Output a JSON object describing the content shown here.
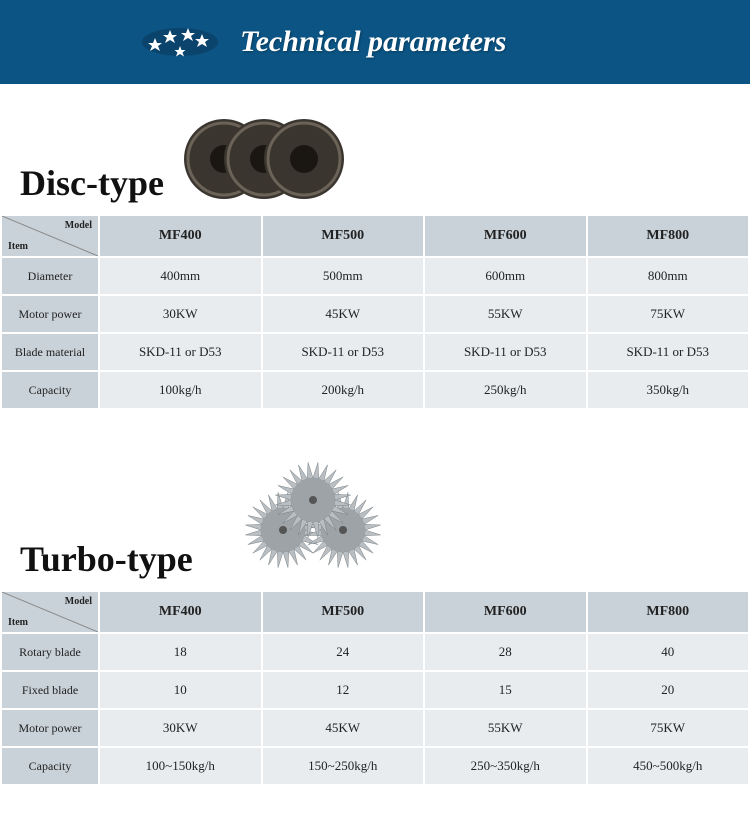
{
  "header": {
    "title": "Technical parameters",
    "bg_color": "#0b5484",
    "title_color": "#ffffff",
    "title_fontsize": 30
  },
  "sections": {
    "disc": {
      "title": "Disc-type",
      "corner": {
        "model": "Model",
        "item": "Item"
      },
      "columns": [
        "MF400",
        "MF500",
        "MF600",
        "MF800"
      ],
      "rows": [
        {
          "label": "Diameter",
          "values": [
            "400mm",
            "500mm",
            "600mm",
            "800mm"
          ]
        },
        {
          "label": "Motor power",
          "values": [
            "30KW",
            "45KW",
            "55KW",
            "75KW"
          ]
        },
        {
          "label": "Blade material",
          "values": [
            "SKD-11 or D53",
            "SKD-11 or D53",
            "SKD-11 or D53",
            "SKD-11 or D53"
          ]
        },
        {
          "label": "Capacity",
          "values": [
            "100kg/h",
            "200kg/h",
            "250kg/h",
            "350kg/h"
          ]
        }
      ]
    },
    "turbo": {
      "title": "Turbo-type",
      "corner": {
        "model": "Model",
        "item": "Item"
      },
      "columns": [
        "MF400",
        "MF500",
        "MF600",
        "MF800"
      ],
      "rows": [
        {
          "label": "Rotary blade",
          "values": [
            "18",
            "24",
            "28",
            "40"
          ]
        },
        {
          "label": "Fixed blade",
          "values": [
            "10",
            "12",
            "15",
            "20"
          ]
        },
        {
          "label": "Motor power",
          "values": [
            "30KW",
            "45KW",
            "55KW",
            "75KW"
          ]
        },
        {
          "label": "Capacity",
          "values": [
            "100~150kg/h",
            "150~250kg/h",
            "250~350kg/h",
            "450~500kg/h"
          ]
        }
      ]
    }
  },
  "style": {
    "header_cell_bg": "#c9d2d9",
    "data_cell_bg": "#e8ecef",
    "section_title_fontsize": 36,
    "col_header_fontsize": 14,
    "row_header_fontsize": 12,
    "data_fontsize": 13,
    "text_color": "#222222"
  }
}
